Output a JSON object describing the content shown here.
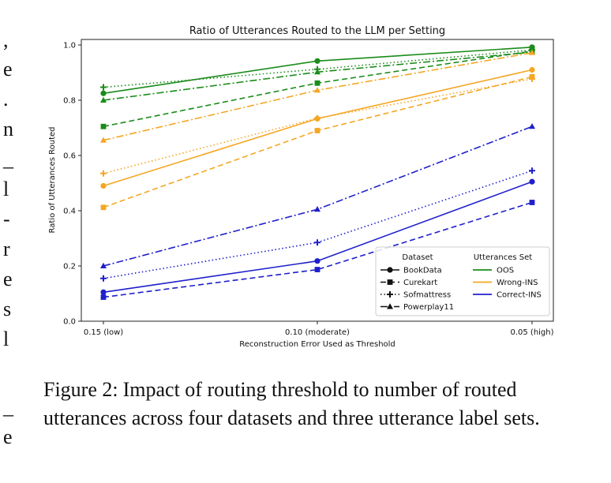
{
  "chart_data": {
    "type": "line",
    "title": "Ratio of Utterances Routed to the LLM per Setting",
    "xlabel": "Reconstruction Error Used as Threshold",
    "ylabel": "Ratio of Utterances Routed",
    "categories": [
      "0.15 (low)",
      "0.10 (moderate)",
      "0.05 (high)"
    ],
    "ylim": [
      0.0,
      1.02
    ],
    "yticks": [
      0.0,
      0.2,
      0.4,
      0.6,
      0.8,
      1.0
    ],
    "ytick_labels": [
      "0.0",
      "0.2",
      "0.4",
      "0.6",
      "0.8",
      "1.0"
    ],
    "grid": false,
    "legend": {
      "placement": "lower-right",
      "dataset_title": "Dataset",
      "set_title": "Utterances Set",
      "datasets": [
        {
          "name": "BookData",
          "marker": "circle",
          "dash": "solid"
        },
        {
          "name": "Curekart",
          "marker": "square",
          "dash": "dashed"
        },
        {
          "name": "Sofmattress",
          "marker": "plus",
          "dash": "dotted"
        },
        {
          "name": "Powerplay11",
          "marker": "triangle",
          "dash": "dashdot"
        }
      ],
      "sets": [
        {
          "name": "OOS",
          "color": "#1a8c1a"
        },
        {
          "name": "Wrong-INS",
          "color": "#f5a623"
        },
        {
          "name": "Correct-INS",
          "color": "#1f1fcc"
        }
      ]
    },
    "series": [
      {
        "dataset": "BookData",
        "set": "OOS",
        "values": [
          0.825,
          0.942,
          0.992
        ]
      },
      {
        "dataset": "Curekart",
        "set": "OOS",
        "values": [
          0.705,
          0.862,
          0.978
        ]
      },
      {
        "dataset": "Sofmattress",
        "set": "OOS",
        "values": [
          0.847,
          0.912,
          0.982
        ]
      },
      {
        "dataset": "Powerplay11",
        "set": "OOS",
        "values": [
          0.8,
          0.902,
          0.974
        ]
      },
      {
        "dataset": "BookData",
        "set": "Wrong-INS",
        "values": [
          0.49,
          0.733,
          0.91
        ]
      },
      {
        "dataset": "Curekart",
        "set": "Wrong-INS",
        "values": [
          0.412,
          0.69,
          0.885
        ]
      },
      {
        "dataset": "Sofmattress",
        "set": "Wrong-INS",
        "values": [
          0.535,
          0.735,
          0.877
        ]
      },
      {
        "dataset": "Powerplay11",
        "set": "Wrong-INS",
        "values": [
          0.655,
          0.836,
          0.972
        ]
      },
      {
        "dataset": "BookData",
        "set": "Correct-INS",
        "values": [
          0.105,
          0.218,
          0.505
        ]
      },
      {
        "dataset": "Curekart",
        "set": "Correct-INS",
        "values": [
          0.087,
          0.187,
          0.43
        ]
      },
      {
        "dataset": "Sofmattress",
        "set": "Correct-INS",
        "values": [
          0.155,
          0.285,
          0.545
        ]
      },
      {
        "dataset": "Powerplay11",
        "set": "Correct-INS",
        "values": [
          0.2,
          0.405,
          0.705
        ]
      }
    ]
  },
  "caption": {
    "label": "Figure 2:",
    "text": "Impact of routing threshold to number of routed utterances across four datasets and three utterance label sets."
  },
  "margin_text": [
    ",",
    "e",
    ".",
    "n",
    "_",
    "l",
    "-",
    "r",
    "e",
    "s",
    "l",
    "_",
    "e"
  ]
}
